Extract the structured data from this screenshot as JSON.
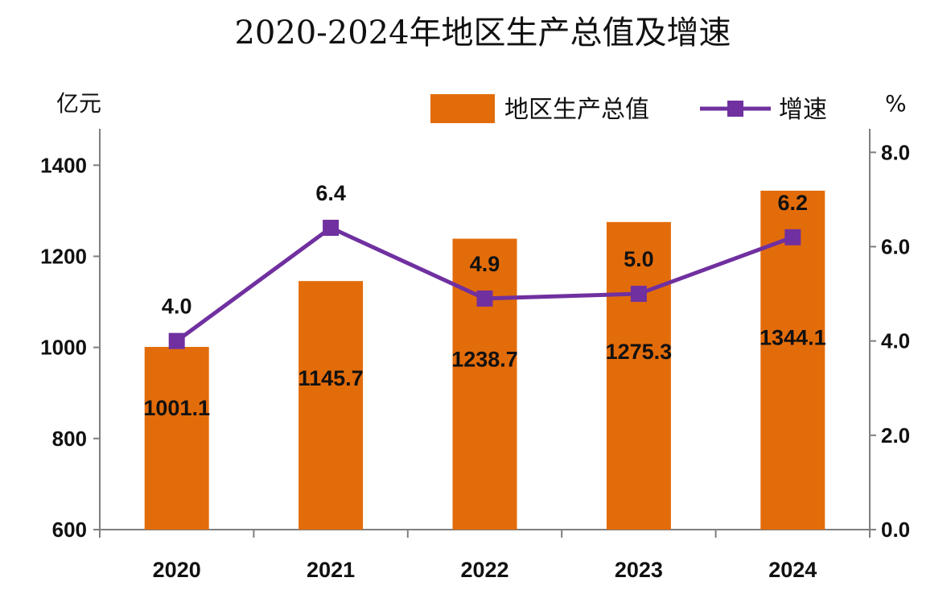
{
  "chart_data": {
    "type": "bar+line",
    "title": "2020-2024年地区生产总值及增速",
    "categories": [
      "2020",
      "2021",
      "2022",
      "2023",
      "2024"
    ],
    "series": [
      {
        "name": "地区生产总值",
        "kind": "bar",
        "axis": "left",
        "values": [
          1001.1,
          1145.7,
          1238.7,
          1275.3,
          1344.1
        ],
        "color": "#E36C0A"
      },
      {
        "name": "增速",
        "kind": "line",
        "axis": "right",
        "values": [
          4.0,
          6.4,
          4.9,
          5.0,
          6.2
        ],
        "labels": [
          "4.0",
          "6.4",
          "4.9",
          "5.0",
          "6.2"
        ],
        "color": "#7030A0"
      }
    ],
    "y_left": {
      "unit": "亿元",
      "ylim": [
        600,
        1480
      ],
      "ticks": [
        600,
        800,
        1000,
        1200,
        1400
      ]
    },
    "y_right": {
      "unit": "%",
      "ylim": [
        0,
        8.5
      ],
      "ticks": [
        "0.0",
        "2.0",
        "4.0",
        "6.0",
        "8.0"
      ]
    },
    "legend_position": "top-right",
    "grid": false
  }
}
